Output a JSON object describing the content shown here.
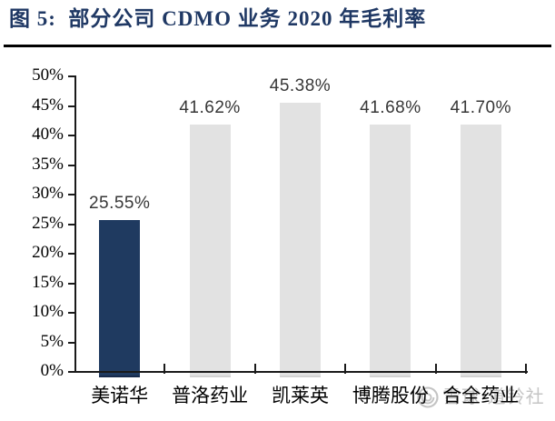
{
  "header": {
    "title": "图 5:  部分公司 CDMO 业务 2020 年毛利率"
  },
  "chart_data": {
    "type": "bar",
    "title": "部分公司 CDMO 业务 2020 年毛利率",
    "categories": [
      "美诺华",
      "普洛药业",
      "凯莱英",
      "博腾股份",
      "合全药业"
    ],
    "values": [
      25.55,
      41.62,
      45.38,
      41.68,
      41.7
    ],
    "value_labels": [
      "25.55%",
      "41.62%",
      "45.38%",
      "41.68%",
      "41.70%"
    ],
    "xlabel": "",
    "ylabel": "",
    "ylim": [
      0,
      50
    ],
    "ytick_step": 5,
    "ytick_suffix": "%",
    "grid": false,
    "legend_position": "none",
    "highlight_index": 0,
    "colors": {
      "title": "#1f3864",
      "highlight_bar": "#1f3a60",
      "highlight_bar_edge": "#16294a",
      "default_bar": "#e2e2e2",
      "default_bar_edge": "#d2d2d2",
      "axis": "#1a1a1a",
      "value_label": "#373737"
    }
  },
  "watermark": {
    "icon": "xueqiu-snowball-logo",
    "text": "雪球·道铃社",
    "color": "#c5c5c5"
  }
}
